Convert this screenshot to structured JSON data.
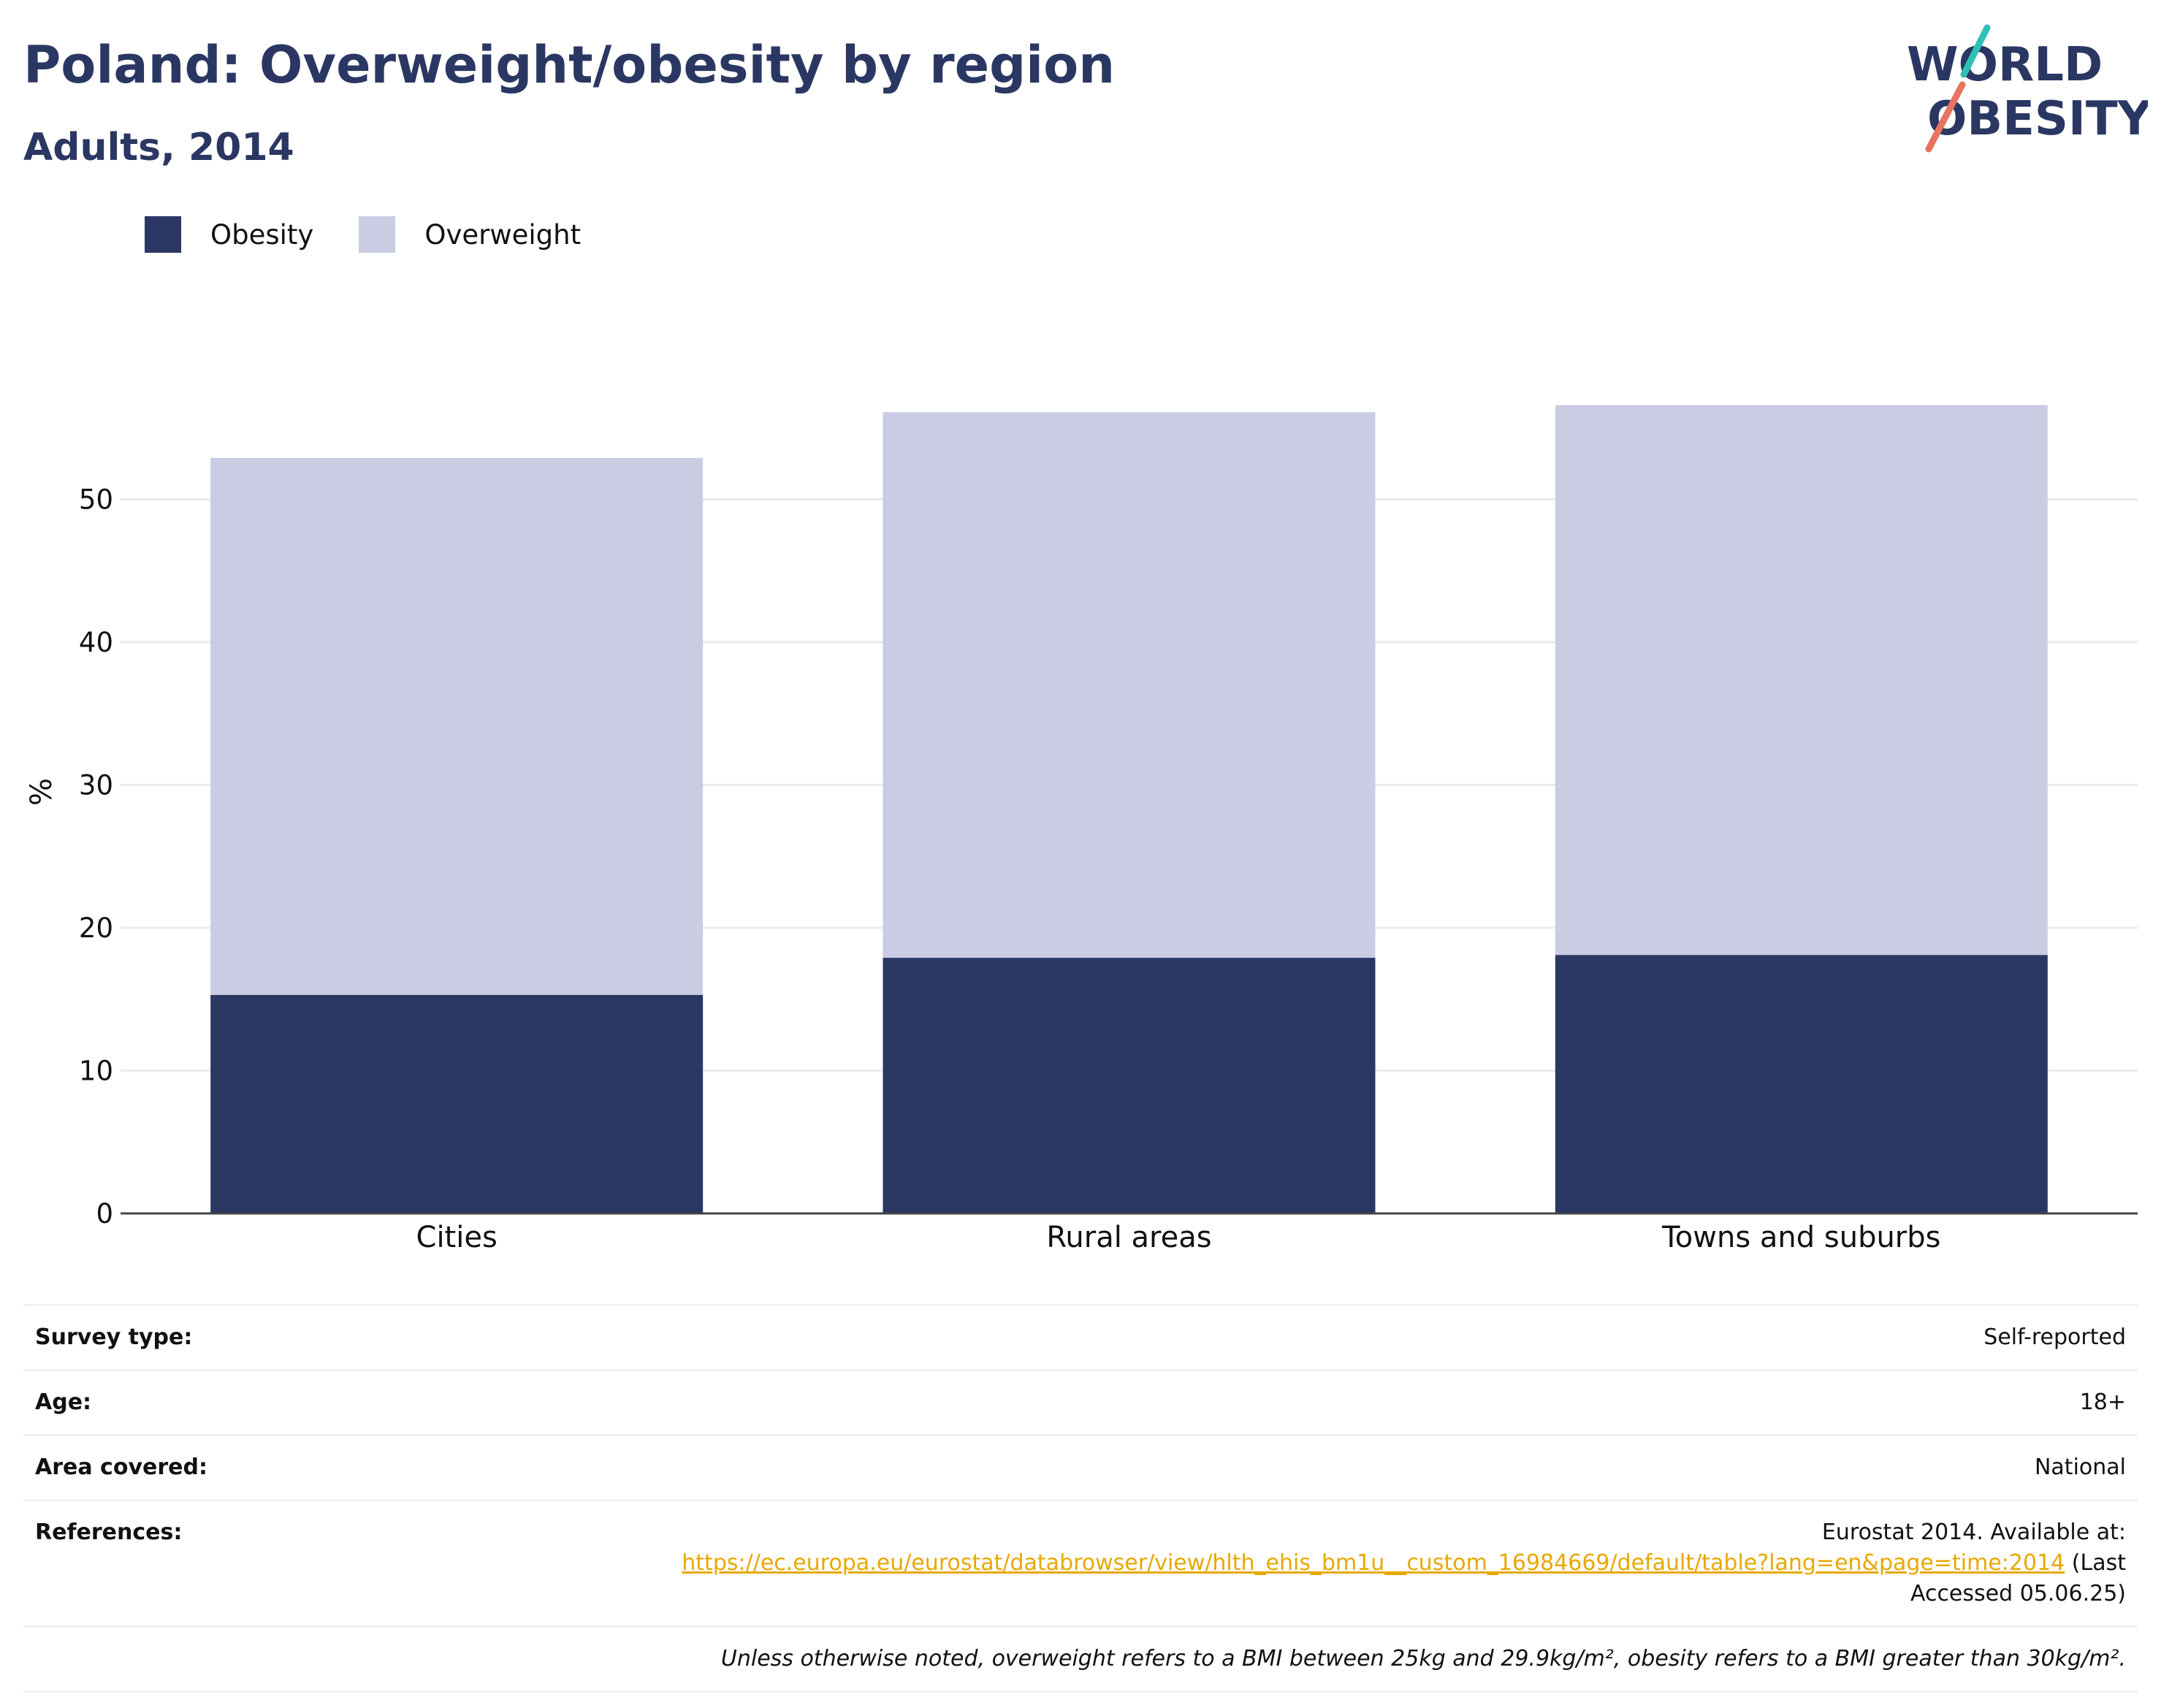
{
  "header": {
    "title": "Poland: Overweight/obesity by region",
    "subtitle": "Adults, 2014",
    "logo_line1": "WORLD",
    "logo_line2": "OBESITY"
  },
  "colors": {
    "obesity": "#2b3763",
    "overweight": "#cacce3",
    "accent_link": "#e8a800",
    "logo_teal": "#2fbfb7",
    "logo_coral": "#e8735f"
  },
  "chart_data": {
    "type": "bar",
    "stacked": true,
    "categories": [
      "Cities",
      "Rural areas",
      "Towns and suburbs"
    ],
    "series": [
      {
        "name": "Obesity",
        "values": [
          15.3,
          17.9,
          18.1
        ]
      },
      {
        "name": "Overweight",
        "values": [
          37.6,
          38.2,
          38.5
        ]
      }
    ],
    "ylabel": "%",
    "ylim": [
      0,
      60
    ],
    "yticks": [
      0,
      10,
      20,
      30,
      40,
      50
    ],
    "grid": true,
    "legend_position": "top-left"
  },
  "info": {
    "survey_type_label": "Survey type:",
    "survey_type_value": "Self-reported",
    "age_label": "Age:",
    "age_value": "18+",
    "area_label": "Area covered:",
    "area_value": "National",
    "references_label": "References:",
    "references_text": "Eurostat 2014. Available at:",
    "references_link": "https://ec.europa.eu/eurostat/databrowser/view/hlth_ehis_bm1u__custom_16984669/default/table?lang=en&page=time:2014",
    "references_suffix": "(Last",
    "references_accessed": "Accessed 05.06.25)",
    "note": "Unless otherwise noted, overweight refers to a BMI between 25kg and 29.9kg/m², obesity refers to a BMI greater than 30kg/m²."
  }
}
